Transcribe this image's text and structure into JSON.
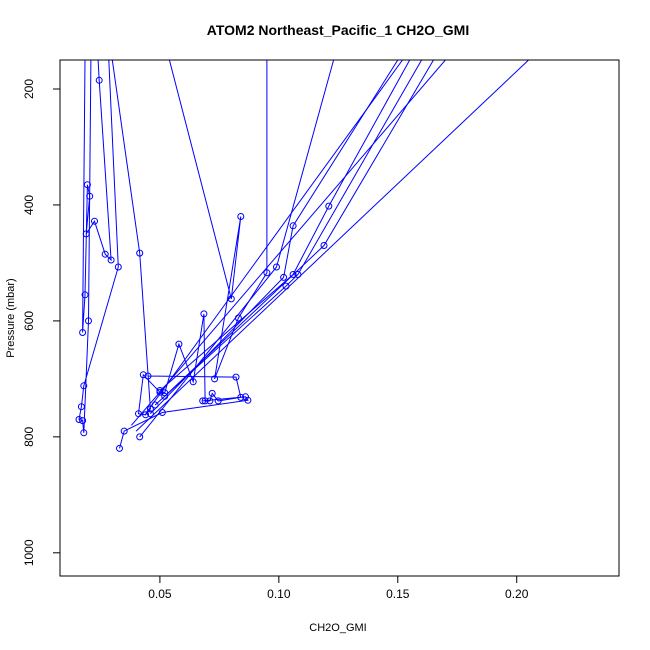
{
  "chart_data": {
    "type": "line",
    "title": "ATOM2 Northeast_Pacific_1 CH2O_GMI",
    "xlabel": "CH2O_GMI",
    "ylabel": "Pressure (mbar)",
    "xlim": [
      0.008,
      0.243
    ],
    "ylim": [
      1040,
      150
    ],
    "y_reversed": true,
    "x_ticks": [
      0.05,
      0.1,
      0.15,
      0.2
    ],
    "x_tick_labels": [
      "0.05",
      "0.10",
      "0.15",
      "0.20"
    ],
    "y_ticks": [
      200,
      400,
      600,
      800,
      1000
    ],
    "y_tick_labels": [
      "200",
      "400",
      "600",
      "800",
      "1000"
    ],
    "grid": false,
    "legend": "none",
    "series_color": "#0000ff",
    "series": [
      {
        "values": [
          {
            "x": 0.0185,
            "y": 150,
            "marker": false
          },
          {
            "x": 0.0175,
            "y": 620
          },
          {
            "x": 0.0185,
            "y": 555
          },
          {
            "x": 0.0195,
            "y": 365
          },
          {
            "x": 0.0205,
            "y": 385
          },
          {
            "x": 0.019,
            "y": 450
          },
          {
            "x": 0.0225,
            "y": 428
          },
          {
            "x": 0.027,
            "y": 485
          },
          {
            "x": 0.0295,
            "y": 495
          },
          {
            "x": 0.0245,
            "y": 185
          },
          {
            "x": 0.024,
            "y": 150,
            "marker": false
          }
        ]
      },
      {
        "values": [
          {
            "x": 0.0285,
            "y": 150,
            "marker": false
          },
          {
            "x": 0.0325,
            "y": 507
          },
          {
            "x": 0.018,
            "y": 712
          },
          {
            "x": 0.017,
            "y": 748
          },
          {
            "x": 0.016,
            "y": 770
          },
          {
            "x": 0.0175,
            "y": 772
          },
          {
            "x": 0.018,
            "y": 793
          },
          {
            "x": 0.02,
            "y": 600
          },
          {
            "x": 0.021,
            "y": 150,
            "marker": false
          }
        ]
      },
      {
        "values": [
          {
            "x": 0.03,
            "y": 150,
            "marker": false
          },
          {
            "x": 0.0415,
            "y": 483
          },
          {
            "x": 0.046,
            "y": 752
          },
          {
            "x": 0.044,
            "y": 762
          },
          {
            "x": 0.041,
            "y": 760
          },
          {
            "x": 0.043,
            "y": 693
          },
          {
            "x": 0.05,
            "y": 723
          },
          {
            "x": 0.052,
            "y": 724
          },
          {
            "x": 0.058,
            "y": 640
          },
          {
            "x": 0.064,
            "y": 705
          },
          {
            "x": 0.0685,
            "y": 588
          },
          {
            "x": 0.069,
            "y": 738
          },
          {
            "x": 0.071,
            "y": 738
          },
          {
            "x": 0.072,
            "y": 725
          },
          {
            "x": 0.0745,
            "y": 738
          },
          {
            "x": 0.084,
            "y": 732
          },
          {
            "x": 0.082,
            "y": 697
          },
          {
            "x": 0.045,
            "y": 695
          }
        ]
      },
      {
        "values": [
          {
            "x": 0.054,
            "y": 150,
            "marker": false
          },
          {
            "x": 0.08,
            "y": 562
          },
          {
            "x": 0.084,
            "y": 420
          },
          {
            "x": 0.073,
            "y": 700
          },
          {
            "x": 0.083,
            "y": 595
          },
          {
            "x": 0.095,
            "y": 517
          },
          {
            "x": 0.095,
            "y": 150,
            "marker": false
          }
        ]
      },
      {
        "values": [
          {
            "x": 0.033,
            "y": 820
          },
          {
            "x": 0.035,
            "y": 790
          },
          {
            "x": 0.051,
            "y": 758
          },
          {
            "x": 0.087,
            "y": 737
          },
          {
            "x": 0.086,
            "y": 731
          },
          {
            "x": 0.068,
            "y": 738
          }
        ]
      },
      {
        "values": [
          {
            "x": 0.0415,
            "y": 800
          },
          {
            "x": 0.099,
            "y": 507
          },
          {
            "x": 0.123,
            "y": 150,
            "marker": false
          }
        ]
      },
      {
        "values": [
          {
            "x": 0.046,
            "y": 760
          },
          {
            "x": 0.102,
            "y": 525
          },
          {
            "x": 0.106,
            "y": 436
          },
          {
            "x": 0.15,
            "y": 150,
            "marker": false
          }
        ]
      },
      {
        "values": [
          {
            "x": 0.048,
            "y": 745
          },
          {
            "x": 0.103,
            "y": 540
          },
          {
            "x": 0.108,
            "y": 520
          },
          {
            "x": 0.16,
            "y": 150,
            "marker": false
          }
        ]
      },
      {
        "values": [
          {
            "x": 0.05,
            "y": 720
          },
          {
            "x": 0.106,
            "y": 520
          },
          {
            "x": 0.121,
            "y": 402
          },
          {
            "x": 0.155,
            "y": 150,
            "marker": false
          }
        ]
      },
      {
        "values": [
          {
            "x": 0.052,
            "y": 730
          },
          {
            "x": 0.119,
            "y": 470
          },
          {
            "x": 0.165,
            "y": 150,
            "marker": false
          }
        ]
      },
      {
        "values": [
          {
            "x": 0.04,
            "y": 790,
            "marker": false
          },
          {
            "x": 0.205,
            "y": 150,
            "marker": false
          }
        ]
      },
      {
        "values": [
          {
            "x": 0.038,
            "y": 780,
            "marker": false
          },
          {
            "x": 0.17,
            "y": 150,
            "marker": false
          }
        ]
      },
      {
        "values": [
          {
            "x": 0.044,
            "y": 760,
            "marker": false
          },
          {
            "x": 0.152,
            "y": 150,
            "marker": false
          }
        ]
      }
    ]
  }
}
